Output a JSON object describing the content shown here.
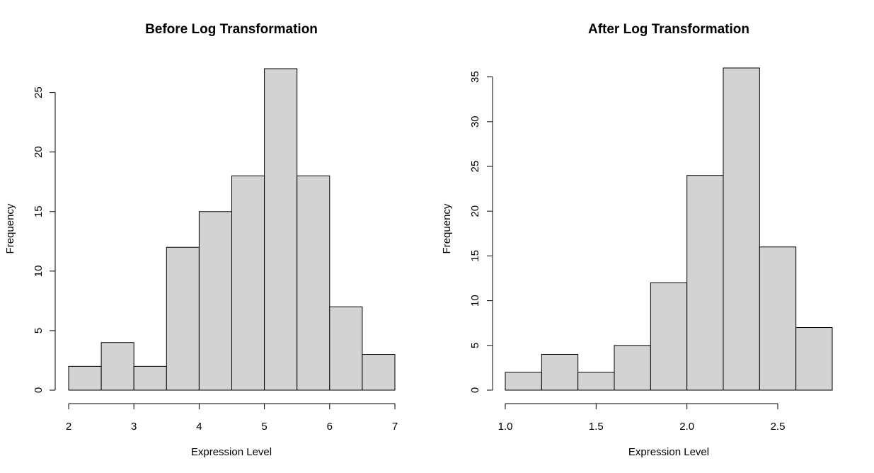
{
  "chart_data": [
    {
      "type": "bar",
      "title": "Before Log Transformation",
      "xlabel": "Expression Level",
      "ylabel": "Frequency",
      "bin_edges": [
        2,
        2.5,
        3,
        3.5,
        4,
        4.5,
        5,
        5.5,
        6,
        6.5,
        7
      ],
      "values": [
        2,
        4,
        2,
        12,
        15,
        18,
        27,
        18,
        7,
        3
      ],
      "xticks": [
        2,
        3,
        4,
        5,
        6,
        7
      ],
      "xtick_labels": [
        "2",
        "3",
        "4",
        "5",
        "6",
        "7"
      ],
      "yticks": [
        0,
        5,
        10,
        15,
        20,
        25
      ],
      "ytick_labels": [
        "0",
        "5",
        "10",
        "15",
        "20",
        "25"
      ],
      "xlim": [
        2,
        7
      ],
      "ylim": [
        0,
        27
      ],
      "bar_color": "#d3d3d3",
      "grid": false
    },
    {
      "type": "bar",
      "title": "After Log Transformation",
      "xlabel": "Expression Level",
      "ylabel": "Frequency",
      "bin_edges": [
        1.0,
        1.2,
        1.4,
        1.6,
        1.8,
        2.0,
        2.2,
        2.4,
        2.6,
        2.8
      ],
      "values": [
        2,
        4,
        2,
        5,
        12,
        24,
        36,
        16,
        7
      ],
      "xticks": [
        1.0,
        1.5,
        2.0,
        2.5
      ],
      "xtick_labels": [
        "1.0",
        "1.5",
        "2.0",
        "2.5"
      ],
      "yticks": [
        0,
        5,
        10,
        15,
        20,
        25,
        30,
        35
      ],
      "ytick_labels": [
        "0",
        "5",
        "10",
        "15",
        "20",
        "25",
        "30",
        "35"
      ],
      "xlim": [
        1.0,
        2.8
      ],
      "ylim": [
        0,
        36
      ],
      "bar_color": "#d3d3d3",
      "grid": false
    }
  ]
}
